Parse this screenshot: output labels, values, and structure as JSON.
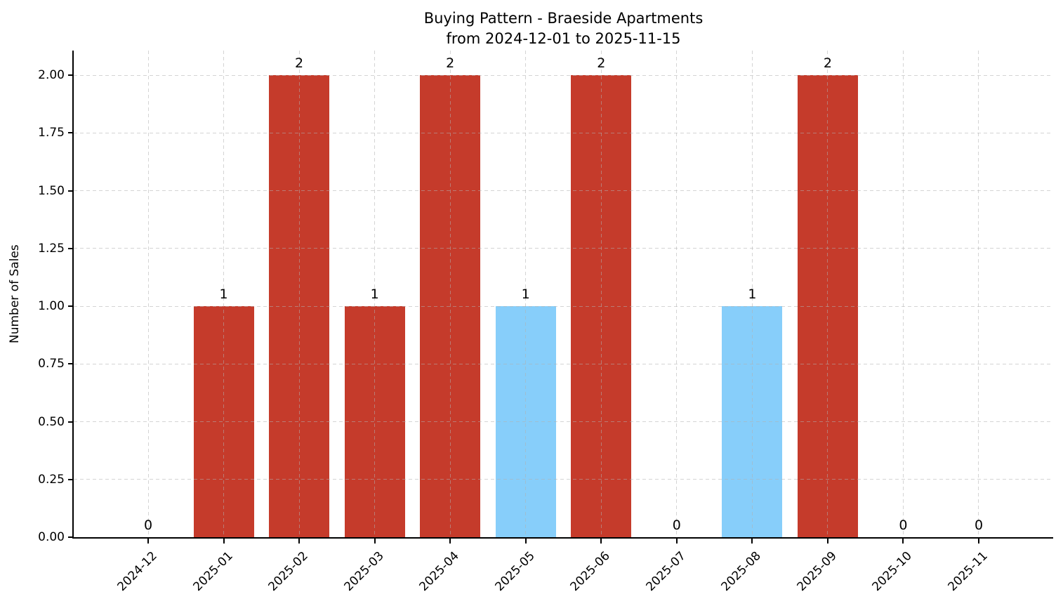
{
  "chart_data": {
    "type": "bar",
    "title": "Buying Pattern - Braeside Apartments",
    "subtitle": "from 2024-12-01 to 2025-11-15",
    "xlabel": "",
    "ylabel": "Number of Sales",
    "categories": [
      "2024-12",
      "2025-01",
      "2025-02",
      "2025-03",
      "2025-04",
      "2025-05",
      "2025-06",
      "2025-07",
      "2025-08",
      "2025-09",
      "2025-10",
      "2025-11"
    ],
    "values": [
      0,
      1,
      2,
      1,
      2,
      1,
      2,
      0,
      1,
      2,
      0,
      0
    ],
    "bar_value_labels": [
      "0",
      "1",
      "2",
      "1",
      "2",
      "1",
      "2",
      "0",
      "1",
      "2",
      "0",
      "0"
    ],
    "bar_colors": [
      "#C53B2B",
      "#C53B2B",
      "#C53B2B",
      "#C53B2B",
      "#C53B2B",
      "#87CEFA",
      "#C53B2B",
      "#C53B2B",
      "#87CEFA",
      "#C53B2B",
      "#C53B2B",
      "#C53B2B"
    ],
    "yticks": [
      0.0,
      0.25,
      0.5,
      0.75,
      1.0,
      1.25,
      1.5,
      1.75,
      2.0
    ],
    "ytick_labels": [
      "0.00",
      "0.25",
      "0.50",
      "0.75",
      "1.00",
      "1.25",
      "1.50",
      "1.75",
      "2.00"
    ],
    "ylim": [
      0,
      2.1
    ],
    "grid": {
      "style": "dashed",
      "axis": "both",
      "color": "#b0b0b0",
      "opacity": 0.55,
      "above_bars": true
    },
    "legend": "none",
    "colors": {
      "bar_default": "#C53B2B",
      "bar_highlight": "#87CEFA",
      "axis": "#000000",
      "background": "#ffffff"
    }
  }
}
